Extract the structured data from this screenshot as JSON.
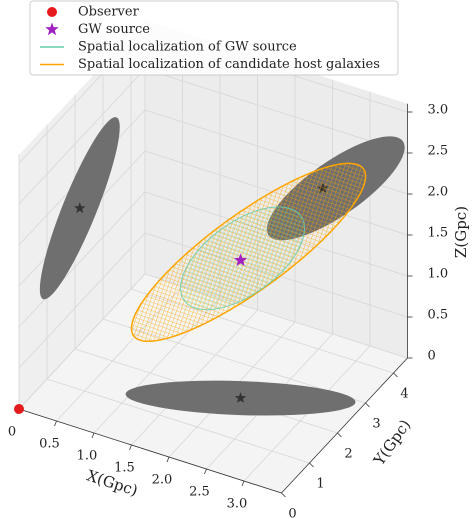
{
  "chart_data": {
    "type": "scatter3d",
    "xlabel": "X(Gpc)",
    "ylabel": "Y(Gpc)",
    "zlabel": "Z(Gpc)",
    "xlim": [
      0,
      3.5
    ],
    "ylim": [
      0,
      4.5
    ],
    "zlim": [
      0,
      3.1
    ],
    "xticks": [
      0,
      0.5,
      {
        "value": 1,
        "label": "1.0"
      },
      1.5,
      {
        "value": 2,
        "label": "2.0"
      },
      2.5,
      {
        "value": 3,
        "label": "3.0"
      }
    ],
    "yticks": [
      0,
      1,
      2,
      3,
      4
    ],
    "zticks": [
      0,
      0.5,
      {
        "value": 1,
        "label": "1.0"
      },
      1.5,
      {
        "value": 2,
        "label": "2.0"
      },
      2.5,
      {
        "value": 3,
        "label": "3.0"
      }
    ],
    "grid": true,
    "legend": "upper left",
    "series": [
      {
        "name": "Observer",
        "color": "#e41a1c",
        "marker": "circle",
        "x": [
          0
        ],
        "y": [
          0
        ],
        "z": [
          0
        ]
      },
      {
        "name": "GW source",
        "color": "#a020c0",
        "marker": "star",
        "x": [
          2.17
        ],
        "y": [
          2.1
        ],
        "z": [
          1.68
        ]
      },
      {
        "name": "Spatial localization of GW source",
        "color": "#66cdaa",
        "marker": "line"
      },
      {
        "name": "Spatial localization of candidate host galaxies",
        "color": "#ffa500",
        "marker": "line"
      }
    ]
  }
}
